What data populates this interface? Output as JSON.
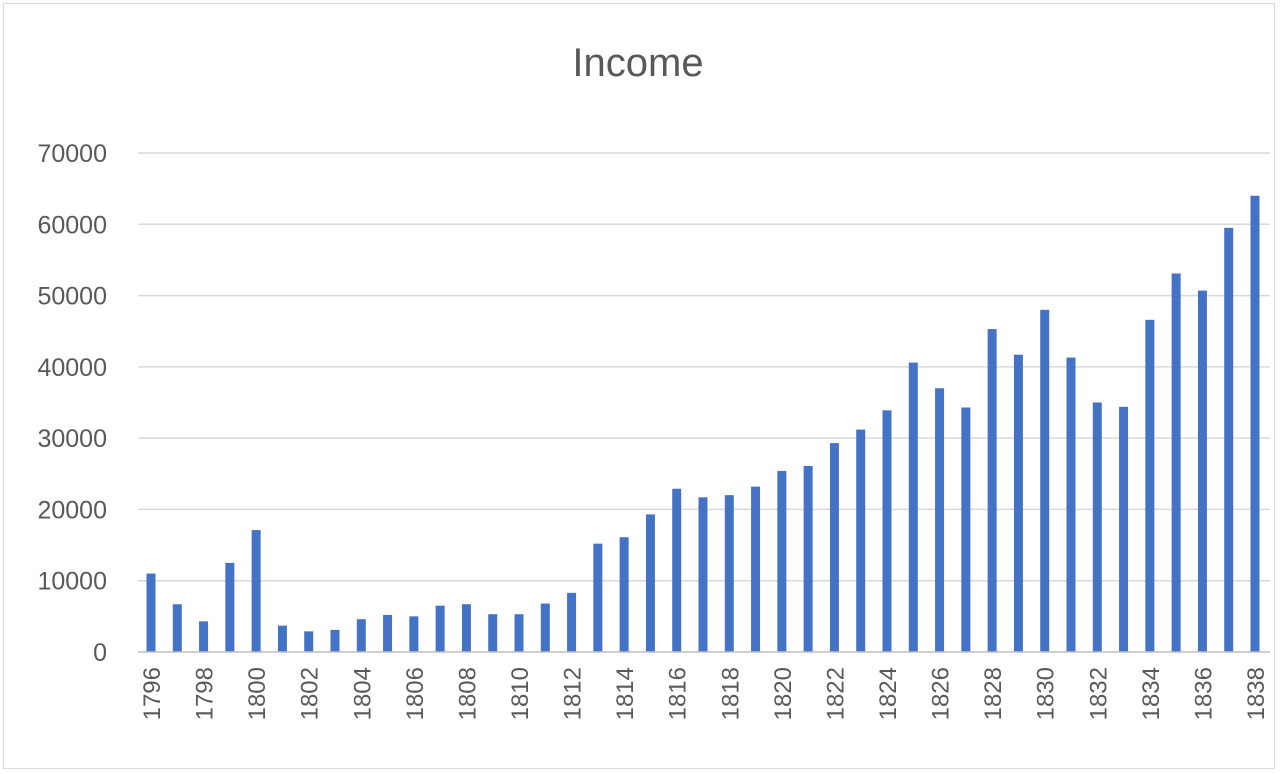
{
  "chart_data": {
    "type": "bar",
    "title": "Income",
    "xlabel": "",
    "ylabel": "",
    "ylim": [
      0,
      70000
    ],
    "yticks": [
      0,
      10000,
      20000,
      30000,
      40000,
      50000,
      60000,
      70000
    ],
    "grid": true,
    "legend": "none",
    "bar_color": "#4472c4",
    "categories": [
      "1796",
      "1797",
      "1798",
      "1799",
      "1800",
      "1801",
      "1802",
      "1803",
      "1804",
      "1805",
      "1806",
      "1807",
      "1808",
      "1809",
      "1810",
      "1811",
      "1812",
      "1813",
      "1814",
      "1815",
      "1816",
      "1817",
      "1818",
      "1819",
      "1820",
      "1821",
      "1822",
      "1823",
      "1824",
      "1825",
      "1826",
      "1827",
      "1828",
      "1829",
      "1830",
      "1831",
      "1832",
      "1833",
      "1834",
      "1835",
      "1836",
      "1837",
      "1838"
    ],
    "tick_labels": [
      "1796",
      "1798",
      "1800",
      "1802",
      "1804",
      "1806",
      "1808",
      "1810",
      "1812",
      "1814",
      "1816",
      "1818",
      "1820",
      "1822",
      "1824",
      "1826",
      "1828",
      "1830",
      "1832",
      "1834",
      "1836",
      "1838"
    ],
    "values": [
      11000,
      6700,
      4300,
      12500,
      17100,
      3700,
      2900,
      3100,
      4600,
      5200,
      5000,
      6500,
      6700,
      5300,
      5300,
      6800,
      8300,
      15200,
      16100,
      19300,
      22900,
      21700,
      22000,
      23200,
      25400,
      26100,
      29300,
      31200,
      33900,
      40600,
      37000,
      34300,
      45300,
      41700,
      48000,
      41300,
      35000,
      34400,
      46600,
      53100,
      50700,
      59500,
      64000
    ]
  }
}
